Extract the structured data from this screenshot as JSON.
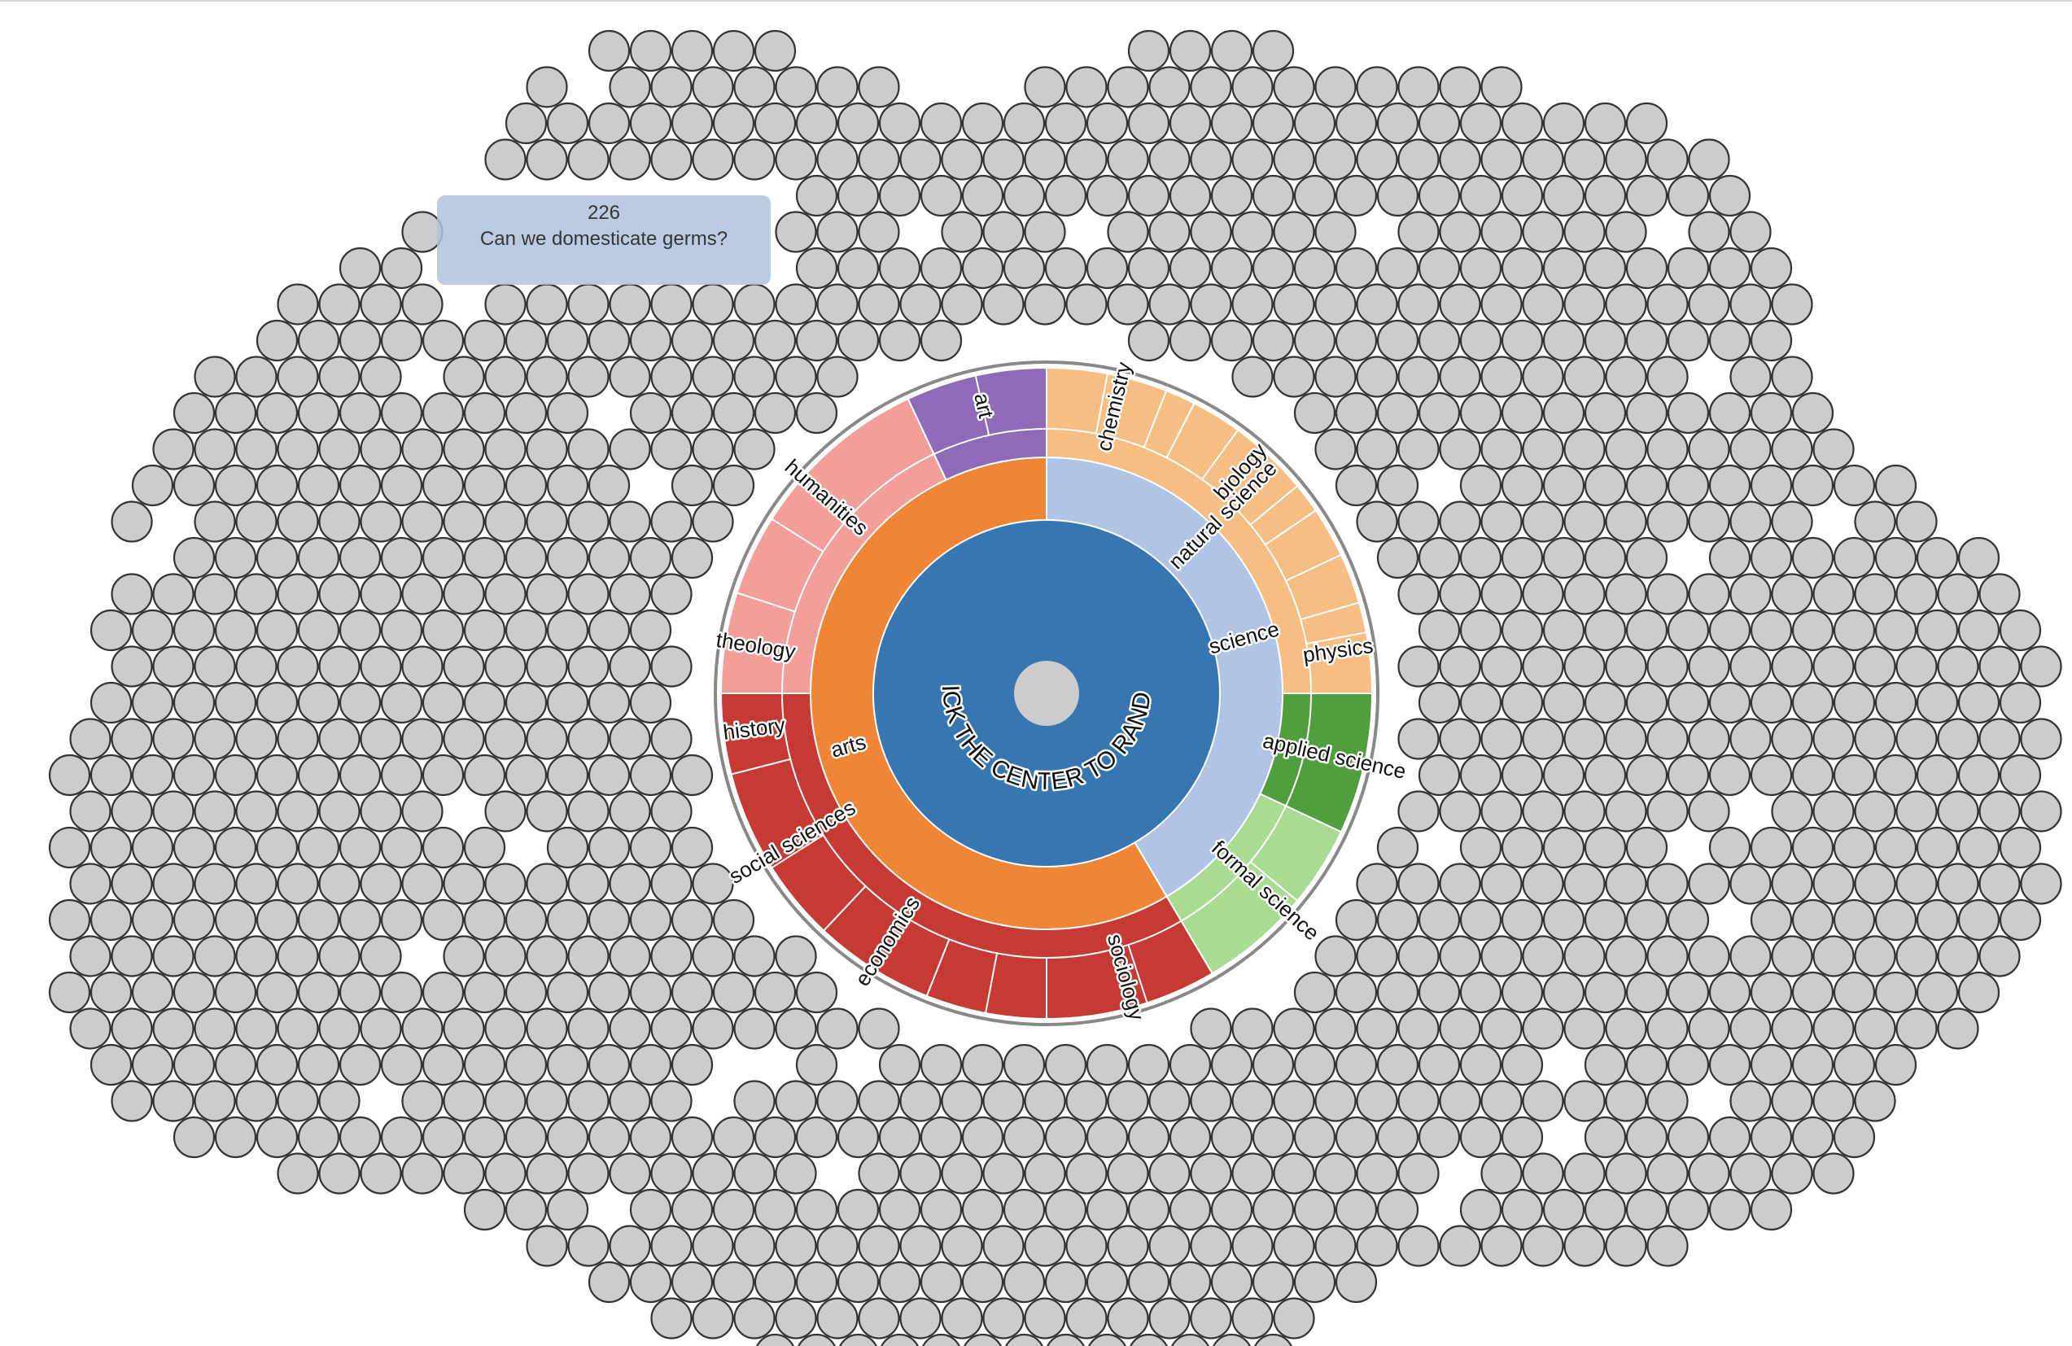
{
  "tooltip": {
    "id": "226",
    "question": "Can we domesticate germs?"
  },
  "center": {
    "label": "CLICK THE CENTER TO RANDOM"
  },
  "colors": {
    "bubble_fill": "#cccccc",
    "bubble_stroke": "#333333",
    "center_core": "#3776b0",
    "center_button": "#cccccc",
    "ring_outline": "#888888",
    "tooltip_bg": "#b0c4de"
  },
  "chart_data": {
    "type": "sunburst",
    "nodes": [
      {
        "name": "science",
        "ring": 1,
        "start": 0,
        "end": 0.415,
        "color": "#b0c4e6"
      },
      {
        "name": "arts",
        "ring": 1,
        "start": 0.415,
        "end": 1.0,
        "color": "#ef8636"
      },
      {
        "name": "natural science",
        "ring": 2,
        "start": 0,
        "end": 0.25,
        "color": "#f6be83"
      },
      {
        "name": "",
        "ring": 2,
        "start": 0.25,
        "end": 0.32,
        "color": "#519e3e"
      },
      {
        "name": "",
        "ring": 2,
        "start": 0.32,
        "end": 0.415,
        "color": "#a9dc93"
      },
      {
        "name": "",
        "ring": 2,
        "start": 0.415,
        "end": 0.75,
        "color": "#c53a32"
      },
      {
        "name": "",
        "ring": 2,
        "start": 0.75,
        "end": 0.93,
        "color": "#f29e9a"
      },
      {
        "name": "",
        "ring": 2,
        "start": 0.93,
        "end": 1.0,
        "color": "#8d6bb8"
      },
      {
        "name": "chemistry",
        "ring": 3,
        "start": 0.0,
        "end": 0.075,
        "color": "#f6be83"
      },
      {
        "name": "biology",
        "ring": 3,
        "start": 0.075,
        "end": 0.155,
        "color": "#f6be83"
      },
      {
        "name": "",
        "ring": 3,
        "start": 0.155,
        "end": 0.205,
        "color": "#f6be83"
      },
      {
        "name": "physics",
        "ring": 3,
        "start": 0.205,
        "end": 0.25,
        "color": "#f6be83"
      },
      {
        "name": "applied science",
        "ring": 3,
        "start": 0.25,
        "end": 0.32,
        "color": "#519e3e"
      },
      {
        "name": "formal science",
        "ring": 3,
        "start": 0.32,
        "end": 0.415,
        "color": "#a9dc93"
      },
      {
        "name": "sociology",
        "ring": 3,
        "start": 0.415,
        "end": 0.5,
        "color": "#c53a32"
      },
      {
        "name": "",
        "ring": 3,
        "start": 0.5,
        "end": 0.56,
        "color": "#c53a32"
      },
      {
        "name": "economics",
        "ring": 3,
        "start": 0.56,
        "end": 0.62,
        "color": "#c53a32"
      },
      {
        "name": "social sciences",
        "ring": 3,
        "start": 0.62,
        "end": 0.71,
        "color": "#c53a32"
      },
      {
        "name": "history",
        "ring": 3,
        "start": 0.71,
        "end": 0.75,
        "color": "#c53a32"
      },
      {
        "name": "theology",
        "ring": 3,
        "start": 0.75,
        "end": 0.8,
        "color": "#f29e9a"
      },
      {
        "name": "humanities",
        "ring": 3,
        "start": 0.8,
        "end": 0.93,
        "color": "#f29e9a"
      },
      {
        "name": "art",
        "ring": 3,
        "start": 0.93,
        "end": 1.0,
        "color": "#8d6bb8"
      }
    ]
  }
}
